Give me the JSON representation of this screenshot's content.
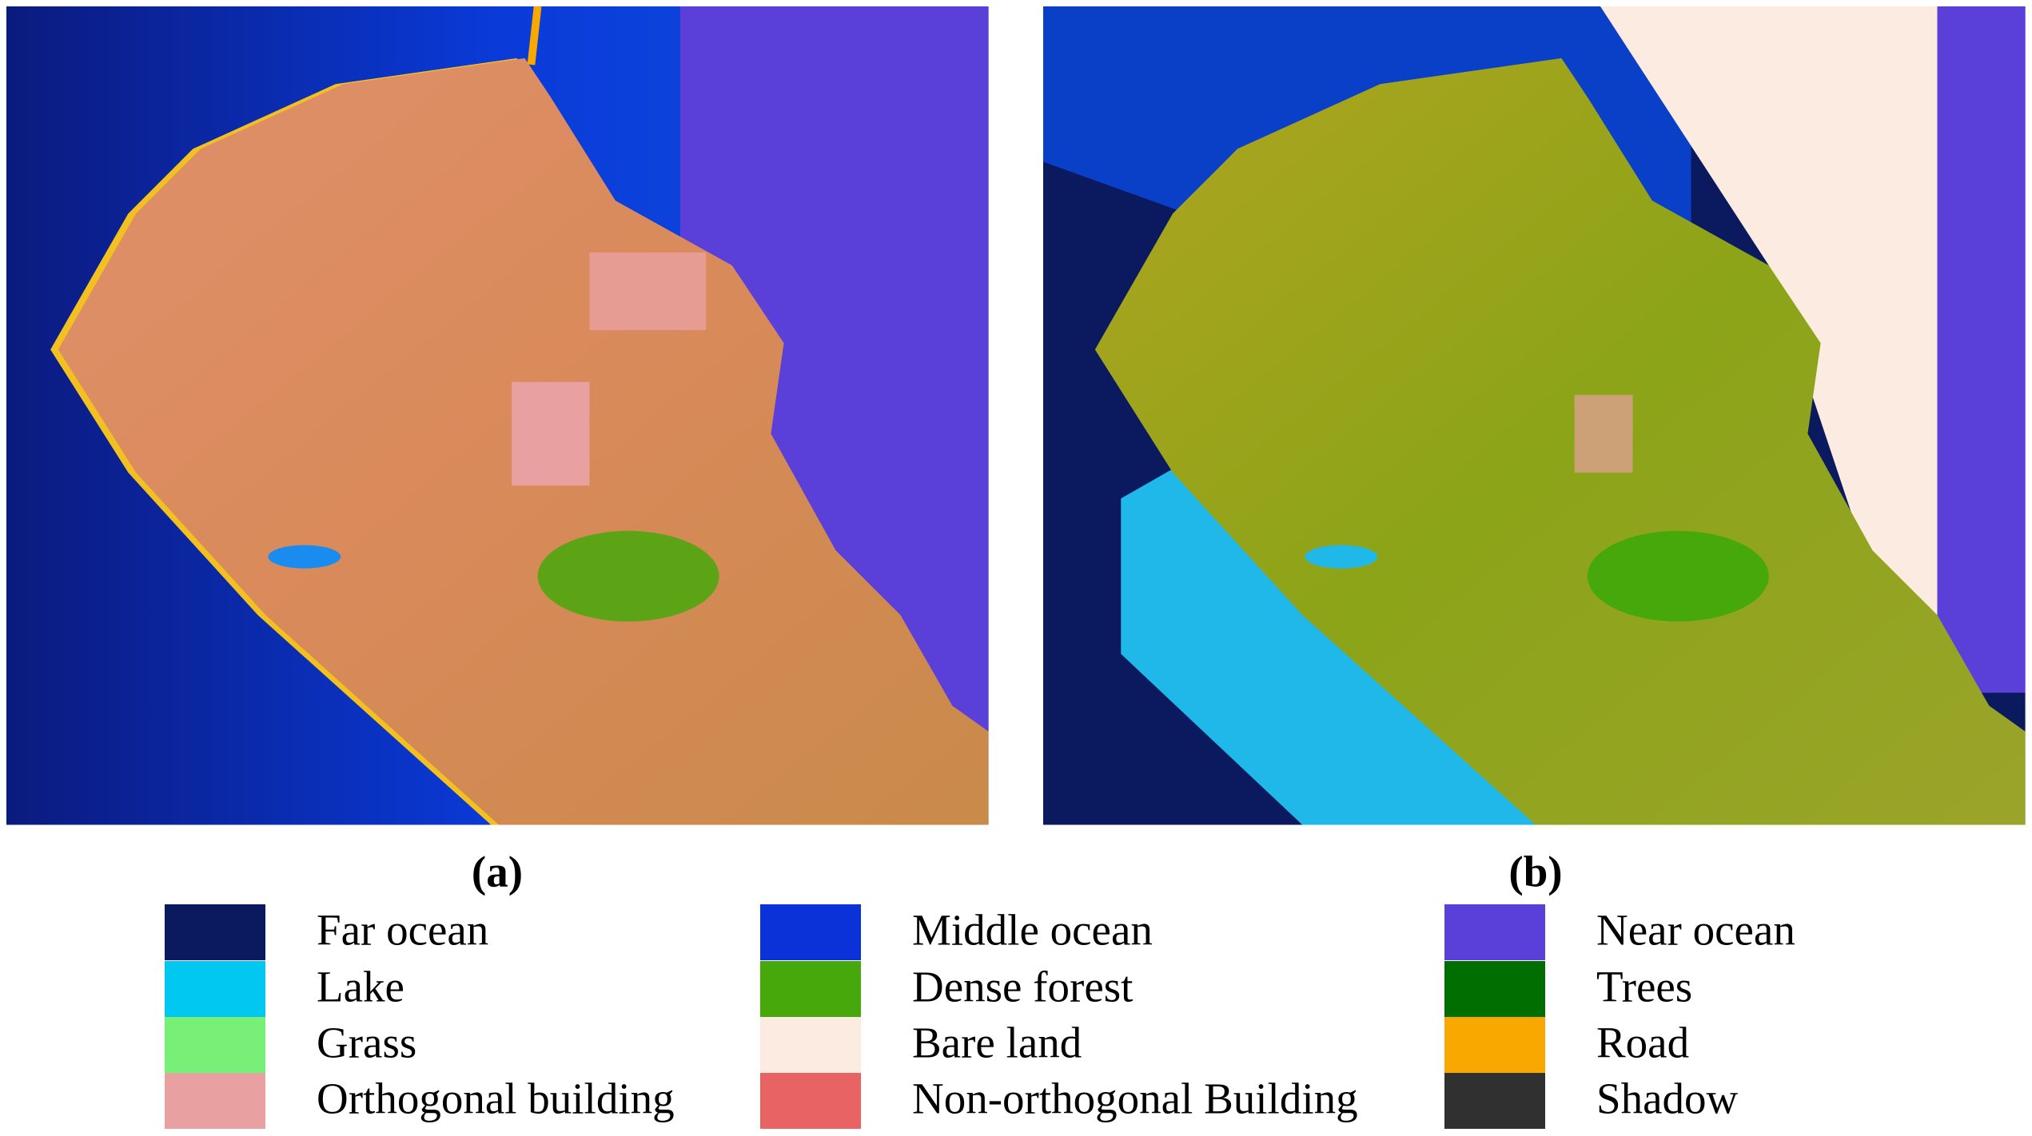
{
  "panels": [
    {
      "label": "(a)"
    },
    {
      "label": "(b)"
    }
  ],
  "legend": [
    {
      "name": "Far ocean",
      "color": "#0b1a5e"
    },
    {
      "name": "Middle ocean",
      "color": "#0a32d8"
    },
    {
      "name": "Near ocean",
      "color": "#5b3fd9"
    },
    {
      "name": "Lake",
      "color": "#00c8f0"
    },
    {
      "name": "Dense forest",
      "color": "#46a80a"
    },
    {
      "name": "Trees",
      "color": "#006e00"
    },
    {
      "name": "Grass",
      "color": "#78f078"
    },
    {
      "name": "Bare land",
      "color": "#fcebe0"
    },
    {
      "name": "Road",
      "color": "#f9a800"
    },
    {
      "name": "Orthogonal building",
      "color": "#e8a0a0"
    },
    {
      "name": "Non-orthogonal Building",
      "color": "#e86464"
    },
    {
      "name": "Shadow",
      "color": "#303030"
    }
  ]
}
